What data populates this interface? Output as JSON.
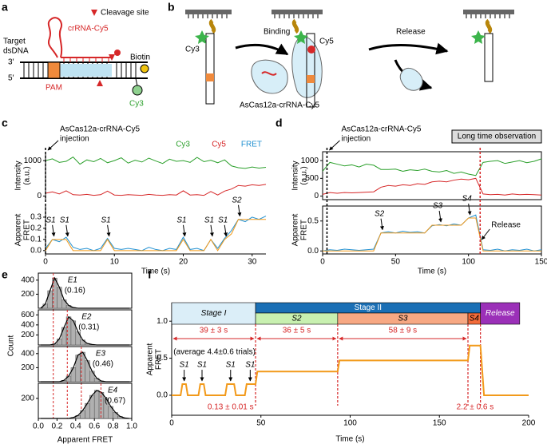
{
  "panel_labels": [
    "a",
    "b",
    "c",
    "d",
    "e",
    "f"
  ],
  "schematic_a": {
    "cleavage": "Cleavage site",
    "crrna": "crRNA-Cy5",
    "target": [
      "Target",
      "dsDNA"
    ],
    "end3": "3′",
    "end5": "5′",
    "biotin": "Biotin",
    "pam": "PAM",
    "cy3": "Cy3"
  },
  "schematic_b": {
    "binding": "Binding",
    "release": "Release",
    "cy3": "Cy3",
    "cy5": "Cy5",
    "complex": "AsCas12a-crRNA-Cy5"
  },
  "chart_data": [
    {
      "type": "line",
      "annotation": [
        "AsCas12a-crRNA-Cy5",
        "injection"
      ],
      "injection_x": 0,
      "x": [
        0,
        1,
        2,
        3,
        4,
        5,
        6,
        7,
        8,
        9,
        10,
        11,
        12,
        13,
        14,
        15,
        16,
        17,
        18,
        19,
        20,
        21,
        22,
        23,
        24,
        25,
        26,
        27,
        28,
        29,
        30,
        31,
        32
      ],
      "xlim": [
        0,
        32
      ],
      "xticks": [
        0,
        10,
        20,
        30
      ],
      "xlabel": "Time (s)",
      "intensity": {
        "ylabel": [
          "Intensity",
          "(a.u.)"
        ],
        "ylim": [
          -100,
          1250
        ],
        "yticks": [
          0,
          1000
        ],
        "series": [
          {
            "name": "Cy3",
            "color": "#2ca02c",
            "values": [
              1000,
              1050,
              950,
              980,
              1100,
              900,
              1020,
              970,
              1060,
              940,
              1000,
              1080,
              930,
              1010,
              960,
              1070,
              990,
              920,
              1040,
              980,
              1000,
              950,
              1090,
              970,
              1010,
              940,
              1020,
              850,
              800,
              780,
              820,
              790,
              810
            ]
          },
          {
            "name": "Cy5",
            "color": "#d62728",
            "values": [
              80,
              120,
              60,
              150,
              40,
              30,
              50,
              20,
              40,
              140,
              30,
              20,
              40,
              30,
              20,
              50,
              30,
              20,
              40,
              30,
              150,
              30,
              40,
              20,
              130,
              30,
              140,
              200,
              300,
              280,
              320,
              300,
              330
            ]
          }
        ]
      },
      "fret": {
        "ylabel": [
          "Apparent",
          "FRET"
        ],
        "ylim": [
          -0.03,
          0.4
        ],
        "yticks": [
          {
            "value": 0,
            "label": "0.0"
          },
          0.1,
          0.2,
          0.3
        ],
        "series": [
          {
            "name": "FRET",
            "color": "#1f8fd0",
            "values": [
              0.02,
              0.1,
              0.08,
              0.12,
              0.03,
              0.01,
              0.02,
              0.0,
              0.02,
              0.11,
              0.02,
              0.01,
              0.02,
              0.01,
              0.0,
              0.03,
              0.01,
              0.0,
              0.02,
              0.01,
              0.12,
              0.01,
              0.02,
              0.0,
              0.1,
              0.02,
              0.11,
              0.18,
              0.28,
              0.26,
              0.3,
              0.28,
              0.31
            ]
          },
          {
            "color": "#f29a1b",
            "values": [
              0,
              0.1,
              0.1,
              0.1,
              0,
              0,
              0,
              0,
              0,
              0.1,
              0,
              0,
              0,
              0,
              0,
              0,
              0,
              0,
              0,
              0,
              0.1,
              0,
              0,
              0,
              0.1,
              0,
              0.1,
              0.15,
              0.28,
              0.28,
              0.28,
              0.28,
              0.28
            ]
          }
        ]
      },
      "labels": [
        {
          "text": "S1",
          "x": 1
        },
        {
          "text": "S1",
          "x": 3
        },
        {
          "text": "S1",
          "x": 9
        },
        {
          "text": "S1",
          "x": 20
        },
        {
          "text": "S1",
          "x": 24
        },
        {
          "text": "S1",
          "x": 26
        },
        {
          "text": "S2",
          "x": 28
        }
      ]
    },
    {
      "type": "line",
      "annotation": [
        "AsCas12a-crRNA-Cy5",
        "injection"
      ],
      "injection_x": 3,
      "note": "Long time observation",
      "release": "Release",
      "release_x": 108,
      "x": [
        0,
        5,
        10,
        15,
        20,
        25,
        30,
        35,
        40,
        45,
        50,
        55,
        60,
        65,
        70,
        75,
        80,
        85,
        90,
        95,
        100,
        105,
        110,
        115,
        120,
        125,
        130,
        135,
        140,
        145,
        150
      ],
      "xlim": [
        0,
        150
      ],
      "xticks": [
        0,
        50,
        100,
        150
      ],
      "xlabel": "Time (s)",
      "intensity": {
        "ylabel": [
          "Intensity",
          "(a.u.)"
        ],
        "ylim": [
          -100,
          1250
        ],
        "yticks": [
          0,
          500,
          1000
        ],
        "series": [
          {
            "color": "#2ca02c",
            "values": [
              700,
              950,
              900,
              850,
              880,
              820,
              900,
              870,
              750,
              750,
              760,
              700,
              740,
              720,
              760,
              700,
              680,
              720,
              640,
              680,
              620,
              580,
              950,
              980,
              1000,
              920,
              960,
              1000,
              940,
              980,
              1050
            ]
          },
          {
            "color": "#d62728",
            "values": [
              50,
              100,
              80,
              100,
              90,
              100,
              110,
              120,
              250,
              300,
              280,
              320,
              300,
              350,
              330,
              400,
              420,
              400,
              450,
              480,
              460,
              500,
              60,
              40,
              50,
              30,
              60,
              40,
              50,
              40,
              30
            ]
          }
        ]
      },
      "fret": {
        "ylabel": [
          "Apparent",
          "FRET"
        ],
        "ylim": [
          -0.05,
          0.75
        ],
        "yticks": [
          {
            "value": 0,
            "label": "0.0"
          },
          0.5
        ],
        "series": [
          {
            "color": "#1f8fd0",
            "values": [
              0,
              0.02,
              0.01,
              0.03,
              0.02,
              0.01,
              0.02,
              0.03,
              0.3,
              0.32,
              0.3,
              0.33,
              0.31,
              0.32,
              0.3,
              0.42,
              0.44,
              0.42,
              0.45,
              0.43,
              0.55,
              0.6,
              0.02,
              0.01,
              0.03,
              0.0,
              0.02,
              0.01,
              0.03,
              0.0,
              0.02
            ]
          },
          {
            "color": "#f29a1b",
            "values": [
              0,
              0,
              0,
              0,
              0,
              0,
              0,
              0,
              0.3,
              0.3,
              0.3,
              0.3,
              0.3,
              0.3,
              0.3,
              0.43,
              0.43,
              0.43,
              0.43,
              0.43,
              0.55,
              0.55,
              0,
              0,
              0,
              0,
              0,
              0,
              0,
              0,
              0
            ]
          }
        ]
      },
      "labels": [
        {
          "text": "S2",
          "x": 40
        },
        {
          "text": "S3",
          "x": 80
        },
        {
          "text": "S4",
          "x": 100
        }
      ]
    },
    {
      "type": "histogram",
      "ylabel": "Count",
      "xlabel": "Apparent FRET",
      "xlim": [
        0,
        1
      ],
      "xticks": [
        {
          "value": 0,
          "label": "0.0"
        },
        0.2,
        0.4,
        0.6,
        0.8,
        {
          "value": 1,
          "label": "1.0"
        }
      ],
      "bins": [
        0,
        0.05,
        0.1,
        0.15,
        0.2,
        0.25,
        0.3,
        0.35,
        0.4,
        0.45,
        0.5,
        0.55,
        0.6,
        0.65,
        0.7,
        0.75,
        0.8,
        0.85,
        0.9,
        0.95,
        1
      ],
      "color": "#b0b0b0",
      "peak_color": "#d62728",
      "series": [
        {
          "name": "E1",
          "peak": {
            "value": 0.16,
            "label": "(0.16)"
          },
          "ylim": [
            0,
            500
          ],
          "yticks": [
            200,
            400
          ],
          "values": [
            0,
            60,
            250,
            430,
            300,
            120,
            40,
            10,
            0,
            0,
            0,
            0,
            0,
            0,
            0,
            0,
            0,
            0,
            0,
            0
          ]
        },
        {
          "name": "E2",
          "peak": {
            "value": 0.31,
            "label": "(0.31)"
          },
          "ylim": [
            0,
            700
          ],
          "yticks": [
            200,
            400,
            600
          ],
          "values": [
            0,
            0,
            0,
            20,
            120,
            350,
            560,
            480,
            260,
            100,
            30,
            10,
            0,
            0,
            0,
            0,
            0,
            0,
            0,
            0
          ]
        },
        {
          "name": "E3",
          "peak": {
            "value": 0.46,
            "label": "(0.46)"
          },
          "ylim": [
            0,
            500
          ],
          "yticks": [
            200,
            400
          ],
          "values": [
            0,
            0,
            0,
            0,
            0,
            20,
            80,
            200,
            380,
            420,
            300,
            150,
            50,
            10,
            0,
            0,
            0,
            0,
            0,
            0
          ]
        },
        {
          "name": "E4",
          "peak": {
            "value": 0.67,
            "label": "(0.67)"
          },
          "ylim": [
            0,
            350
          ],
          "yticks": [
            200
          ],
          "values": [
            0,
            0,
            0,
            0,
            0,
            0,
            0,
            10,
            30,
            80,
            150,
            230,
            280,
            260,
            200,
            120,
            60,
            20,
            5,
            0
          ]
        }
      ]
    },
    {
      "type": "step",
      "ylabel": [
        "Apparent",
        "FRET"
      ],
      "xlabel": "Time (s)",
      "xlim": [
        0,
        200
      ],
      "xticks": [
        0,
        50,
        100,
        150,
        200
      ],
      "ylim": [
        -0.27,
        1.25
      ],
      "yticks": [
        {
          "value": 0,
          "label": "0.0"
        },
        0.5,
        {
          "value": 1,
          "label": "1.0"
        }
      ],
      "color": "#f29a1b",
      "marker_color": "#d62728",
      "x": [
        0,
        5,
        6,
        8,
        9,
        15,
        16,
        18,
        19,
        30,
        31,
        35,
        36,
        41,
        42,
        47,
        48,
        93,
        94,
        166,
        167,
        173,
        175,
        200
      ],
      "values": [
        0,
        0,
        0.15,
        0.15,
        0,
        0,
        0.15,
        0.15,
        0,
        0,
        0.15,
        0.15,
        0,
        0,
        0.15,
        0.15,
        0.32,
        0.32,
        0.47,
        0.47,
        0.67,
        0.67,
        0,
        0
      ],
      "stages": [
        {
          "label": "Stage I",
          "span": [
            0,
            47
          ],
          "color": "#dbeef8",
          "duration": "39 ± 3 s"
        },
        {
          "label": "Stage II",
          "span": [
            47,
            173
          ],
          "color": "#1a6fb5"
        },
        {
          "label": "Release",
          "span": [
            173,
            195
          ],
          "color": "#9b30b8"
        }
      ],
      "substages": [
        {
          "label": "S2",
          "span": [
            47,
            93
          ],
          "color": "#c8f0b0",
          "duration": "36 ± 5 s"
        },
        {
          "label": "S3",
          "span": [
            93,
            166
          ],
          "color": "#f7a883",
          "duration": "58 ± 9 s"
        },
        {
          "label": "S4",
          "span": [
            166,
            173
          ],
          "color": "#f26b3a"
        }
      ],
      "trials": "(average 4.4±0.6 trials)",
      "labels": [
        {
          "text": "S1",
          "x": 7
        },
        {
          "text": "S1",
          "x": 17
        },
        {
          "text": "S1",
          "x": 33
        },
        {
          "text": "S1",
          "x": 44
        }
      ],
      "notes": [
        {
          "text": "0.13 ± 0.01 s",
          "x": 33
        },
        {
          "text": "2.2 ± 0.6 s",
          "x": 170
        }
      ]
    }
  ]
}
